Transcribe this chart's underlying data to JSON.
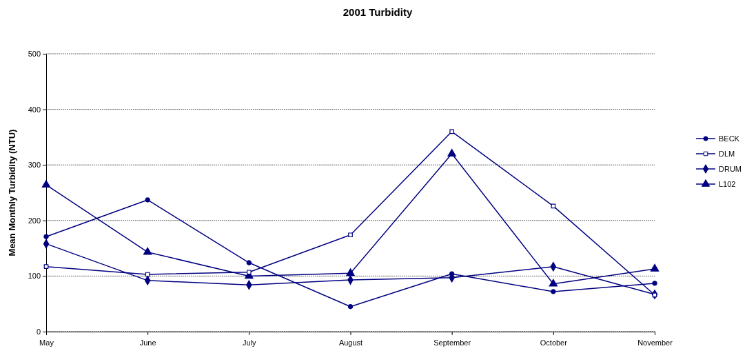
{
  "chart_data": {
    "type": "line",
    "title": "2001 Turbidity",
    "ylabel": "Mean Monthly Turbidity (NTU)",
    "categories": [
      "May",
      "June",
      "July",
      "August",
      "September",
      "October",
      "November"
    ],
    "ylim": [
      0,
      500
    ],
    "yticks": [
      0,
      100,
      200,
      300,
      400,
      500
    ],
    "grid": "y",
    "legend": "right",
    "series": [
      {
        "name": "BECK",
        "color": "#000080",
        "marker": "circle",
        "values": [
          171,
          237,
          124,
          45,
          104,
          72,
          87
        ]
      },
      {
        "name": "DLM",
        "color": "#000080",
        "marker": "square",
        "values": [
          117,
          103,
          107,
          174,
          360,
          226,
          66
        ]
      },
      {
        "name": "DRUM",
        "color": "#000080",
        "marker": "diamond",
        "values": [
          158,
          92,
          84,
          93,
          97,
          117,
          67
        ]
      },
      {
        "name": "L102",
        "color": "#000080",
        "marker": "triangle",
        "values": [
          264,
          143,
          100,
          105,
          320,
          86,
          113
        ]
      }
    ]
  }
}
